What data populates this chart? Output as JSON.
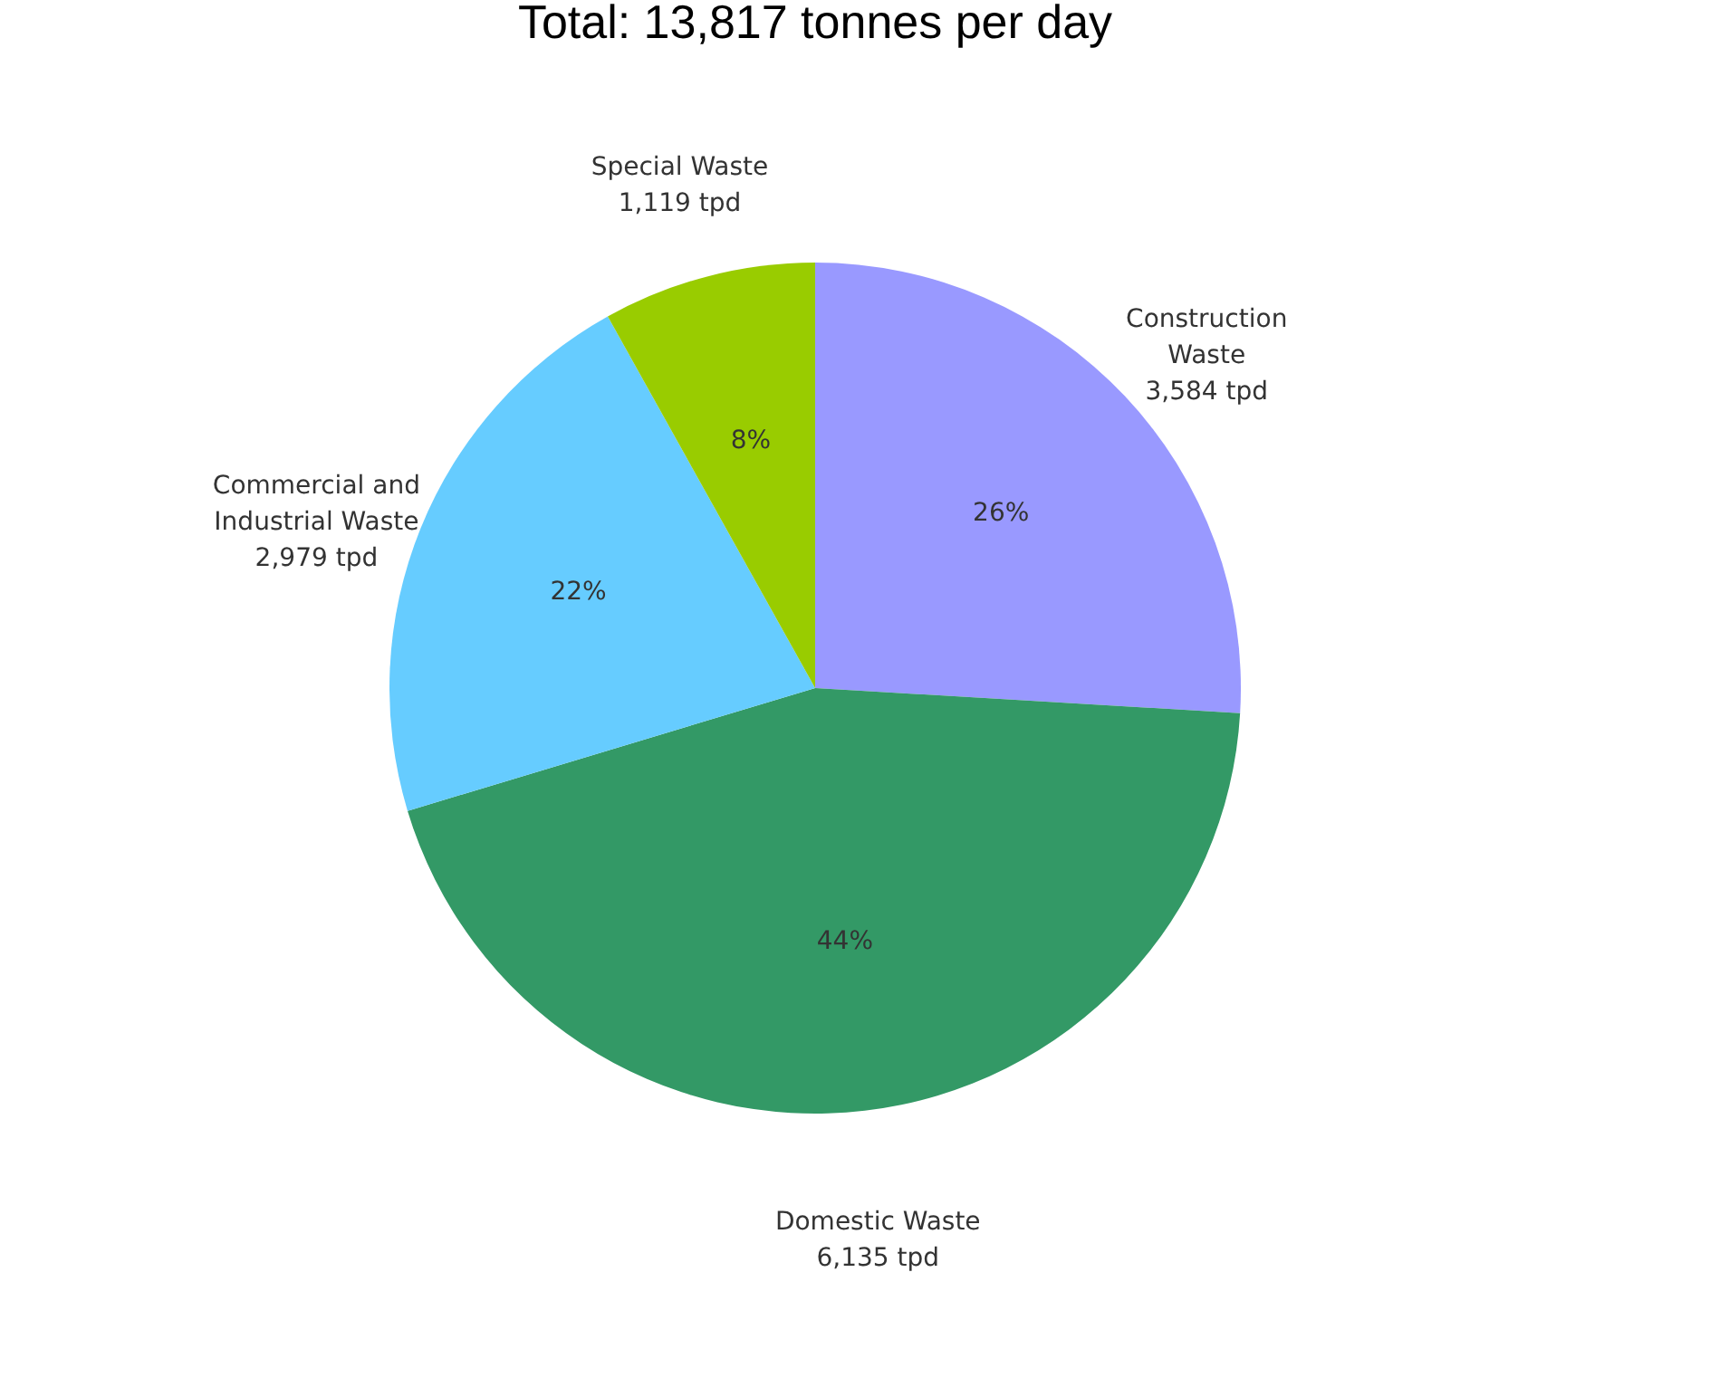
{
  "chart_data": {
    "type": "pie",
    "title": "Total: 13,817 tonnes per day",
    "categories": [
      "Construction Waste",
      "Domestic Waste",
      "Commercial and Industrial Waste",
      "Special Waste"
    ],
    "values": [
      3584,
      6135,
      2979,
      1119
    ],
    "colors": [
      "#9999ff",
      "#339966",
      "#66ccff",
      "#99cc00"
    ],
    "value_labels": [
      "3,584 tpd",
      "6,135 tpd",
      "2,979 tpd",
      "1,119 tpd"
    ],
    "annotations": [
      {
        "text": "26%",
        "x": "Construction Waste"
      },
      {
        "text": "44%",
        "x": "Domestic Waste"
      },
      {
        "text": "22%",
        "x": "Commercial and Industrial Waste"
      },
      {
        "text": "8%",
        "x": "Special Waste"
      }
    ]
  }
}
